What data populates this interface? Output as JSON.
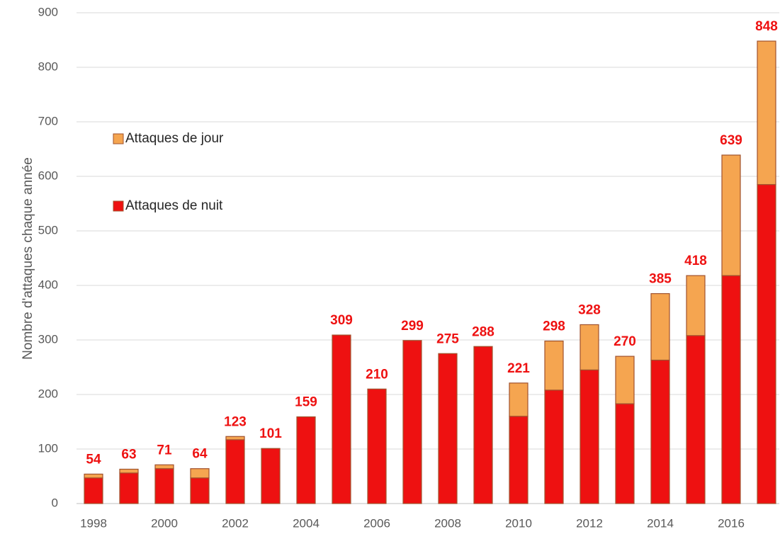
{
  "chart_data": {
    "type": "stacked_bar",
    "y_label": "Nombre d'attaques  chaque année",
    "categories": [
      "1998",
      null,
      "2000",
      null,
      "2002",
      null,
      "2004",
      null,
      "2006",
      null,
      "2008",
      null,
      "2010",
      null,
      "2012",
      null,
      "2014",
      null,
      "2016",
      null
    ],
    "series": [
      {
        "name": "Attaques de nuit",
        "color": "#ee1111",
        "values": [
          47,
          56,
          64,
          47,
          117,
          101,
          159,
          309,
          210,
          299,
          275,
          288,
          160,
          208,
          245,
          183,
          263,
          308,
          418,
          585
        ]
      },
      {
        "name": "Attaques de jour",
        "color": "#f5a550",
        "values": [
          7,
          7,
          7,
          17,
          6,
          0,
          0,
          0,
          0,
          0,
          0,
          0,
          61,
          90,
          83,
          87,
          122,
          110,
          221,
          263
        ]
      }
    ],
    "totals": [
      54,
      63,
      71,
      64,
      123,
      101,
      159,
      309,
      210,
      299,
      275,
      288,
      221,
      298,
      328,
      270,
      385,
      418,
      639,
      848
    ],
    "ylim": [
      0,
      900
    ],
    "yticks": [
      0,
      100,
      200,
      300,
      400,
      500,
      600,
      700,
      800,
      900
    ],
    "grid": true
  }
}
